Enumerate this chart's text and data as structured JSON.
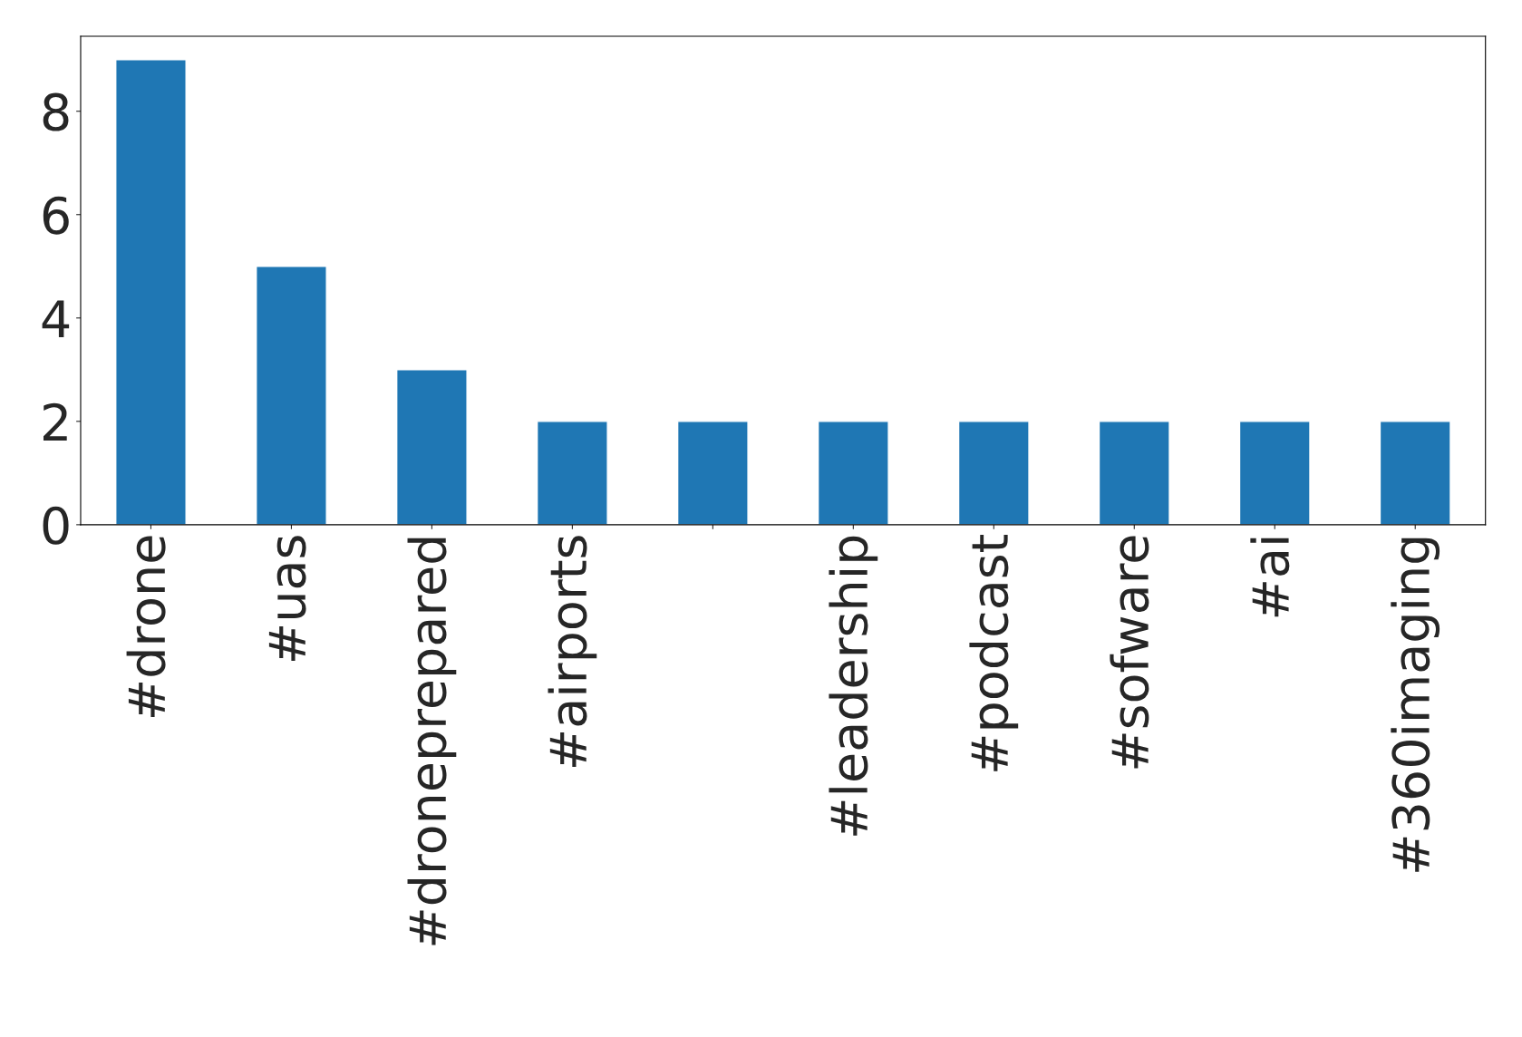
{
  "chart_data": {
    "type": "bar",
    "categories": [
      "#drone",
      "#uas",
      "#droneprepared",
      "#airports",
      null,
      "#leadership",
      "#podcast",
      "#sofware",
      "#ai",
      "#360imaging"
    ],
    "values": [
      9,
      5,
      3,
      2,
      2,
      2,
      2,
      2,
      2,
      2
    ],
    "color": "#1f77b4",
    "ylim": [
      0,
      9.45
    ],
    "yticks": [
      0,
      2,
      4,
      6,
      8
    ],
    "grid": false,
    "legend": false
  }
}
